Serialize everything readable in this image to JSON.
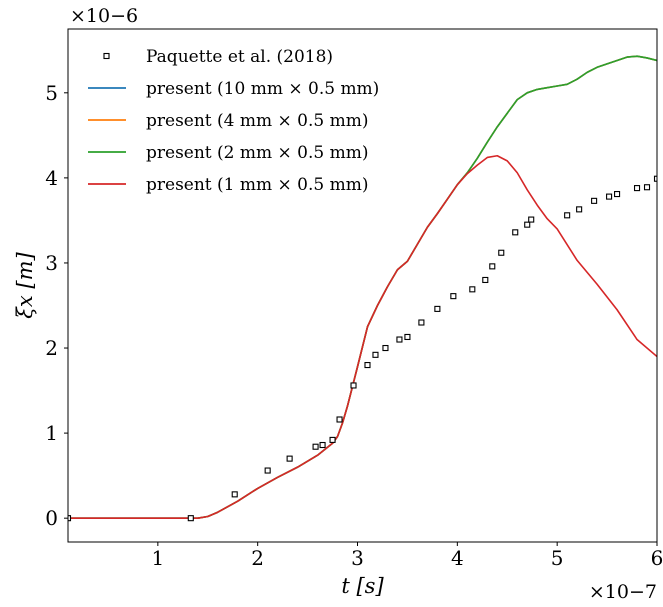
{
  "chart_data": {
    "type": "line",
    "title": "",
    "xlabel": "t [s]",
    "ylabel": "ξx [m]",
    "x_scale_label": "×10−7",
    "y_scale_label": "×10−6",
    "xlim": [
      0.1,
      6.0
    ],
    "ylim": [
      -0.28,
      5.75
    ],
    "x_ticks": [
      1,
      2,
      3,
      4,
      5,
      6
    ],
    "y_ticks": [
      0,
      1,
      2,
      3,
      4,
      5
    ],
    "grid": false,
    "legend": "top-left",
    "series": [
      {
        "name": "Paquette et al. (2018)",
        "kind": "scatter",
        "marker": "square",
        "color": "#000000",
        "x": [
          0.1,
          1.33,
          1.77,
          2.1,
          2.32,
          2.58,
          2.65,
          2.75,
          2.82,
          2.96,
          3.1,
          3.18,
          3.28,
          3.42,
          3.5,
          3.64,
          3.8,
          3.96,
          4.15,
          4.28,
          4.35,
          4.44,
          4.58,
          4.7,
          4.74,
          5.1,
          5.22,
          5.37,
          5.52,
          5.6,
          5.8,
          5.9,
          6.0
        ],
        "y": [
          0.0,
          0.0,
          0.28,
          0.56,
          0.7,
          0.84,
          0.86,
          0.92,
          1.16,
          1.56,
          1.8,
          1.92,
          2.0,
          2.1,
          2.13,
          2.3,
          2.46,
          2.61,
          2.69,
          2.8,
          2.96,
          3.12,
          3.36,
          3.45,
          3.51,
          3.56,
          3.63,
          3.73,
          3.78,
          3.81,
          3.88,
          3.89,
          3.99
        ]
      },
      {
        "name": "present (10 mm × 0.5 mm)",
        "kind": "line",
        "color": "#1f77b4",
        "x": [
          0.1,
          1.0,
          1.4,
          1.5,
          1.6,
          1.8,
          2.0,
          2.2,
          2.4,
          2.6,
          2.75,
          2.8,
          2.85,
          2.9,
          3.0,
          3.1,
          3.2,
          3.3,
          3.4,
          3.5,
          3.6,
          3.7,
          3.8,
          3.9,
          4.0,
          4.1,
          4.2,
          4.3,
          4.4,
          4.5,
          4.6,
          4.7,
          4.8,
          4.9,
          5.0,
          5.1,
          5.2,
          5.3,
          5.4,
          5.5,
          5.6,
          5.7,
          5.8,
          5.9,
          6.0
        ],
        "y": [
          0.0,
          0.0,
          0.0,
          0.02,
          0.07,
          0.2,
          0.35,
          0.48,
          0.6,
          0.74,
          0.88,
          0.96,
          1.12,
          1.32,
          1.78,
          2.25,
          2.5,
          2.72,
          2.92,
          3.02,
          3.22,
          3.42,
          3.58,
          3.75,
          3.92,
          4.06,
          4.23,
          4.42,
          4.6,
          4.76,
          4.92,
          5.0,
          5.04,
          5.06,
          5.08,
          5.1,
          5.16,
          5.24,
          5.3,
          5.34,
          5.38,
          5.42,
          5.43,
          5.41,
          5.38
        ]
      },
      {
        "name": "present (4 mm × 0.5 mm)",
        "kind": "line",
        "color": "#ff7f0e",
        "x": [
          0.1,
          1.0,
          1.4,
          1.5,
          1.6,
          1.8,
          2.0,
          2.2,
          2.4,
          2.6,
          2.75,
          2.8,
          2.85,
          2.9,
          3.0,
          3.1,
          3.2,
          3.3,
          3.4,
          3.5,
          3.6,
          3.7,
          3.8,
          3.9,
          4.0,
          4.1,
          4.2,
          4.3,
          4.4,
          4.5,
          4.6,
          4.7,
          4.8,
          4.9,
          5.0,
          5.1,
          5.2,
          5.3,
          5.4,
          5.5,
          5.6,
          5.7,
          5.8,
          5.9,
          6.0
        ],
        "y": [
          0.0,
          0.0,
          0.0,
          0.02,
          0.07,
          0.2,
          0.35,
          0.48,
          0.6,
          0.74,
          0.88,
          0.96,
          1.12,
          1.32,
          1.78,
          2.25,
          2.5,
          2.72,
          2.92,
          3.02,
          3.22,
          3.42,
          3.58,
          3.75,
          3.92,
          4.06,
          4.23,
          4.42,
          4.6,
          4.76,
          4.92,
          5.0,
          5.04,
          5.06,
          5.08,
          5.1,
          5.16,
          5.24,
          5.3,
          5.34,
          5.38,
          5.42,
          5.43,
          5.41,
          5.38
        ]
      },
      {
        "name": "present (2 mm × 0.5 mm)",
        "kind": "line",
        "color": "#2ca02c",
        "x": [
          0.1,
          1.0,
          1.4,
          1.5,
          1.6,
          1.8,
          2.0,
          2.2,
          2.4,
          2.6,
          2.75,
          2.8,
          2.85,
          2.9,
          3.0,
          3.1,
          3.2,
          3.3,
          3.4,
          3.5,
          3.6,
          3.7,
          3.8,
          3.9,
          4.0,
          4.1,
          4.2,
          4.3,
          4.4,
          4.5,
          4.6,
          4.7,
          4.8,
          4.9,
          5.0,
          5.1,
          5.2,
          5.3,
          5.4,
          5.5,
          5.6,
          5.7,
          5.8,
          5.9,
          6.0
        ],
        "y": [
          0.0,
          0.0,
          0.0,
          0.02,
          0.07,
          0.2,
          0.35,
          0.48,
          0.6,
          0.74,
          0.88,
          0.96,
          1.12,
          1.32,
          1.78,
          2.25,
          2.5,
          2.72,
          2.92,
          3.02,
          3.22,
          3.42,
          3.58,
          3.75,
          3.92,
          4.06,
          4.23,
          4.42,
          4.6,
          4.76,
          4.92,
          5.0,
          5.04,
          5.06,
          5.08,
          5.1,
          5.16,
          5.24,
          5.3,
          5.34,
          5.38,
          5.42,
          5.43,
          5.41,
          5.38
        ]
      },
      {
        "name": "present (1 mm × 0.5 mm)",
        "kind": "line",
        "color": "#d62728",
        "x": [
          0.1,
          1.0,
          1.4,
          1.5,
          1.6,
          1.8,
          2.0,
          2.2,
          2.4,
          2.6,
          2.75,
          2.8,
          2.85,
          2.9,
          3.0,
          3.1,
          3.2,
          3.3,
          3.4,
          3.5,
          3.6,
          3.7,
          3.8,
          3.9,
          4.0,
          4.1,
          4.2,
          4.3,
          4.4,
          4.5,
          4.6,
          4.7,
          4.8,
          4.9,
          5.0,
          5.2,
          5.4,
          5.6,
          5.8,
          6.0
        ],
        "y": [
          0.0,
          0.0,
          0.0,
          0.02,
          0.07,
          0.2,
          0.35,
          0.48,
          0.6,
          0.74,
          0.88,
          0.96,
          1.12,
          1.32,
          1.78,
          2.25,
          2.5,
          2.72,
          2.92,
          3.02,
          3.22,
          3.42,
          3.58,
          3.75,
          3.92,
          4.05,
          4.15,
          4.24,
          4.26,
          4.2,
          4.06,
          3.86,
          3.68,
          3.52,
          3.4,
          3.03,
          2.75,
          2.45,
          2.1,
          1.9
        ]
      }
    ]
  }
}
